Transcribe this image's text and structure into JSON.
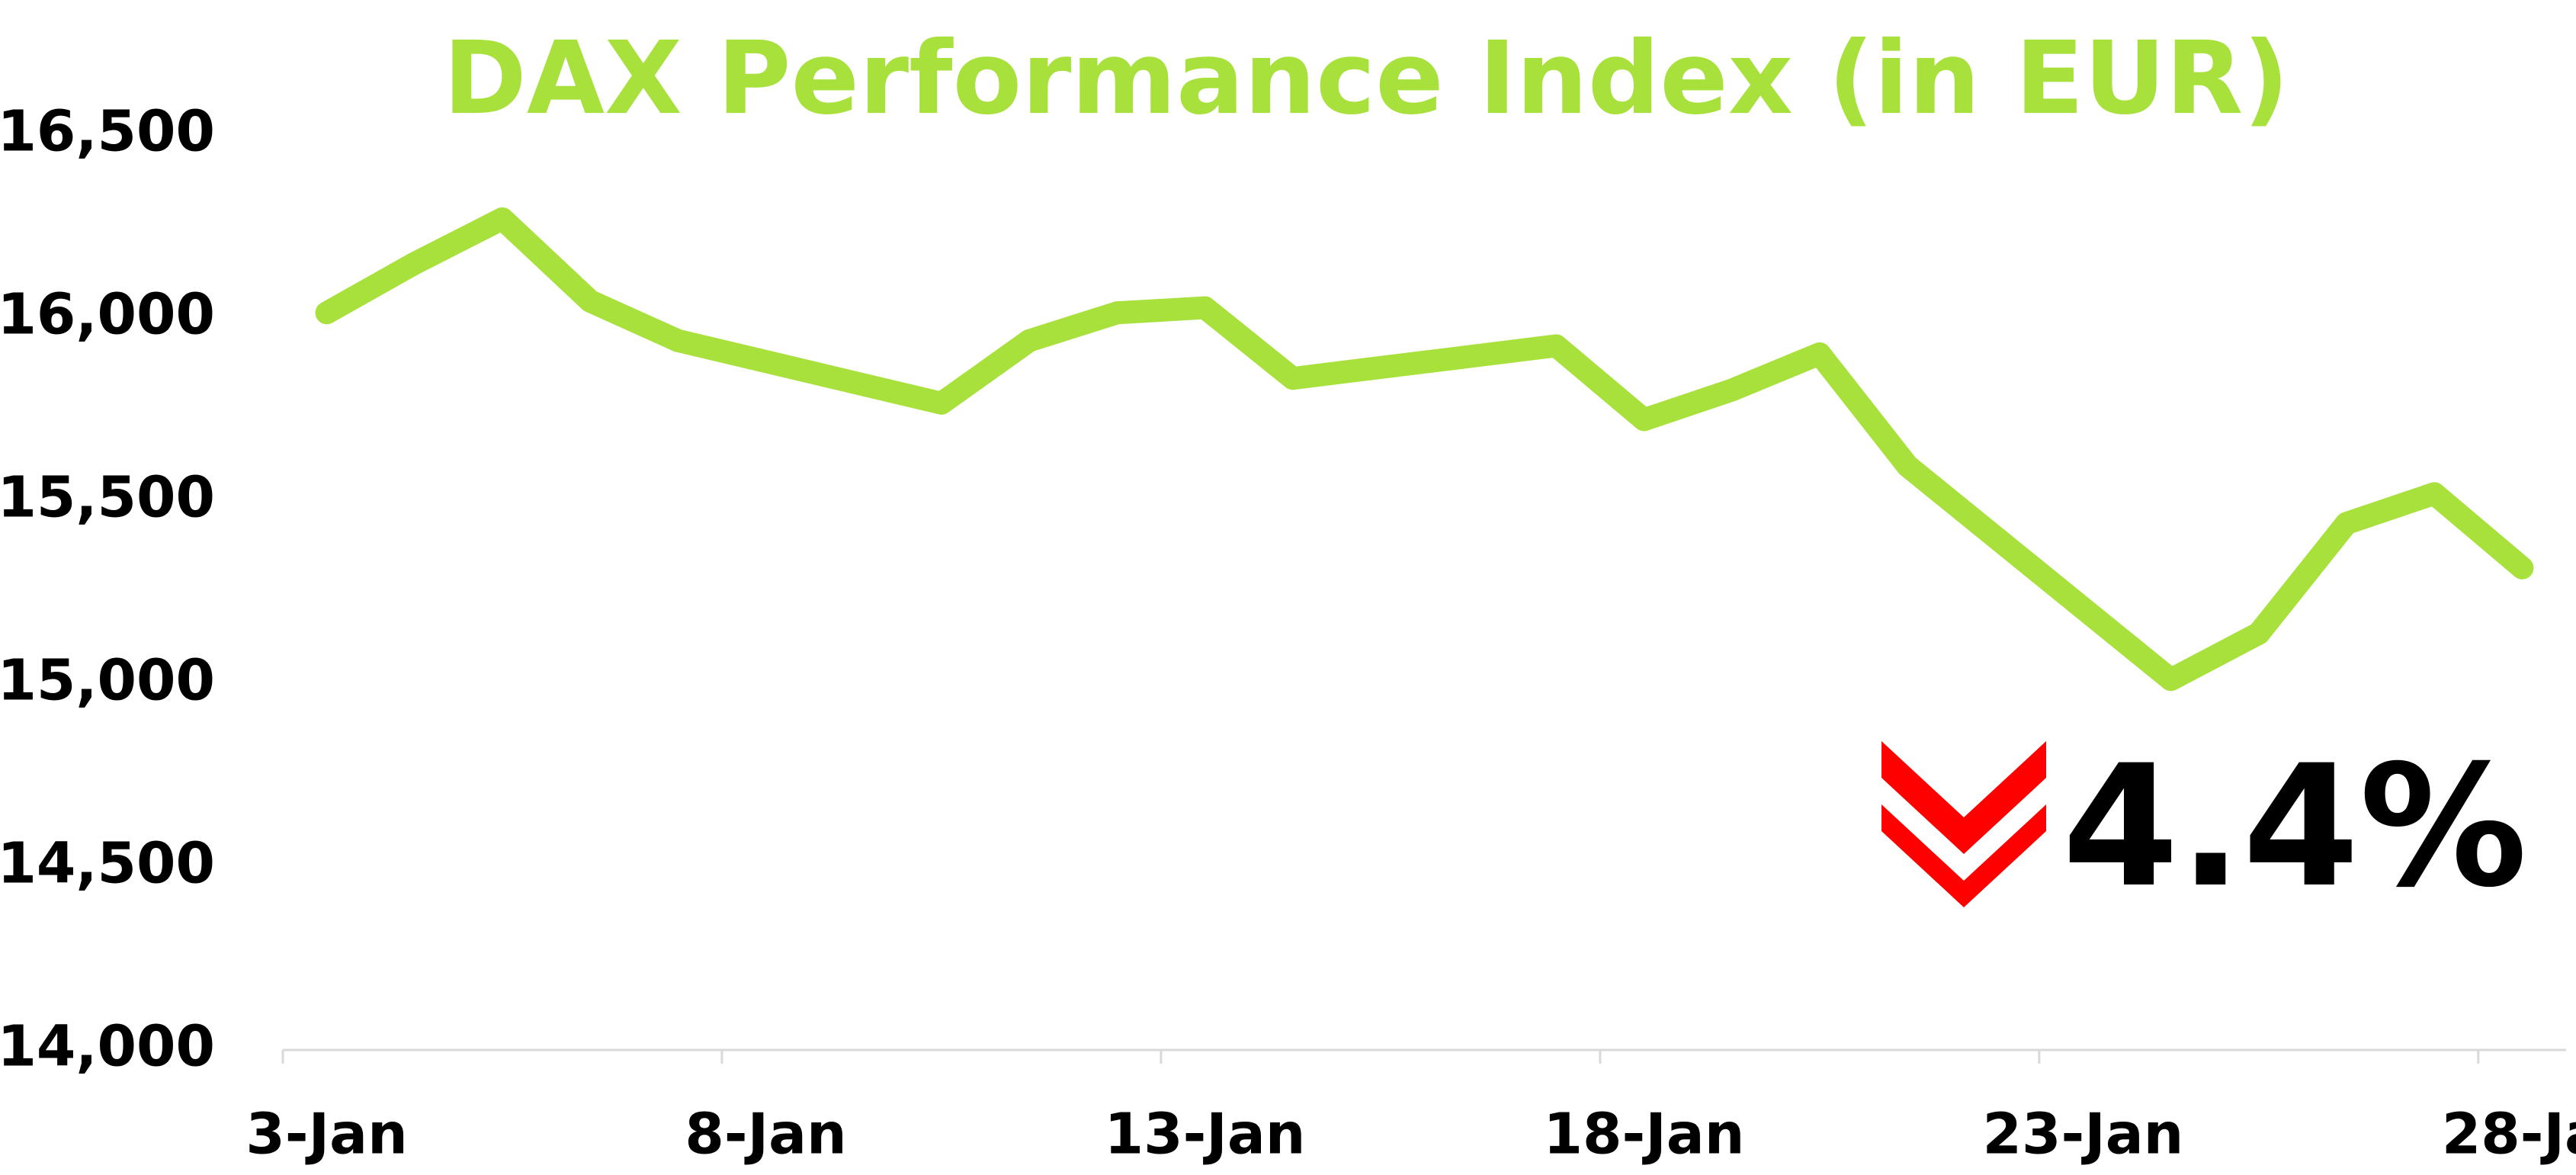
{
  "chart_data": {
    "type": "line",
    "title": "DAX Performance Index (in EUR)",
    "annotation": "4.4%",
    "x": [
      3,
      4,
      5,
      6,
      7,
      10,
      11,
      12,
      13,
      14,
      17,
      18,
      19,
      20,
      21,
      24,
      25,
      26,
      27,
      28
    ],
    "series": [
      {
        "name": "DAX",
        "color": "#a8e03c",
        "values": [
          16014,
          16149,
          16271,
          16046,
          15938,
          15767,
          15938,
          16014,
          16028,
          15835,
          15924,
          15722,
          15803,
          15902,
          15596,
          15012,
          15138,
          15439,
          15520,
          15317
        ]
      }
    ],
    "xlim": [
      2.5,
      28.5
    ],
    "xticks": [
      {
        "value": 3,
        "label": "3-Jan"
      },
      {
        "value": 8,
        "label": "8-Jan"
      },
      {
        "value": 13,
        "label": "13-Jan"
      },
      {
        "value": 18,
        "label": "18-Jan"
      },
      {
        "value": 23,
        "label": "23-Jan"
      },
      {
        "value": 28,
        "label": "28-Ja"
      }
    ],
    "ylim": [
      14000,
      16500
    ],
    "yticks": [
      {
        "value": 14000,
        "label": "14,000"
      },
      {
        "value": 14500,
        "label": "14,500"
      },
      {
        "value": 15000,
        "label": "15,000"
      },
      {
        "value": 15500,
        "label": "15,500"
      },
      {
        "value": 16000,
        "label": "16,000"
      },
      {
        "value": 16500,
        "label": "16,500"
      }
    ],
    "grid": false
  }
}
